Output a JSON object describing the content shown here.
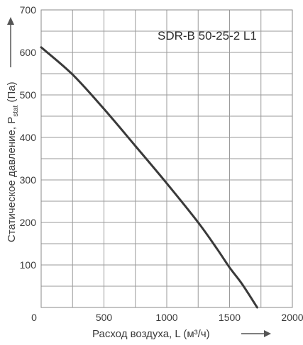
{
  "chart_data": {
    "type": "line",
    "title": "SDR-B 50-25-2 L1",
    "xlabel": "Расход воздуха, L (м³/ч)",
    "ylabel": {
      "main": "Статическое давление, P",
      "sub": "stat",
      "unit": " (Па)"
    },
    "xlim": [
      0,
      2000
    ],
    "ylim": [
      0,
      700
    ],
    "x_ticks": [
      "0",
      "500",
      "1000",
      "1500",
      "2000"
    ],
    "y_ticks": [
      "100",
      "200",
      "300",
      "400",
      "500",
      "600",
      "700"
    ],
    "grid": true,
    "series": [
      {
        "color": "#3a3a3a",
        "x": [
          0,
          250,
          500,
          750,
          1000,
          1250,
          1400,
          1500,
          1600,
          1720
        ],
        "y": [
          612,
          548,
          467,
          380,
          292,
          200,
          138,
          94,
          55,
          0
        ]
      }
    ]
  }
}
